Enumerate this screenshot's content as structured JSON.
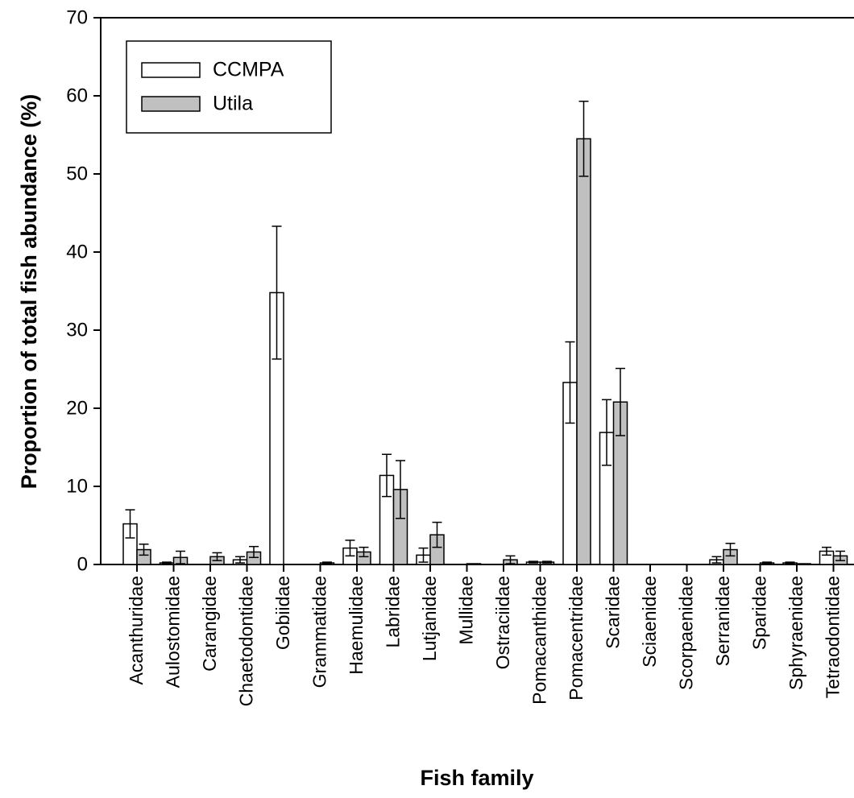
{
  "chart_data": {
    "type": "bar",
    "y_label": "Proportion of total fish abundance (%)",
    "x_label": "Fish family",
    "categories": [
      "Acanthuridae",
      "Aulostomidae",
      "Carangidae",
      "Chaetodontidae",
      "Gobiidae",
      "Grammatidae",
      "Haemulidae",
      "Labridae",
      "Lutjanidae",
      "Mullidae",
      "Ostraciidae",
      "Pomacanthidae",
      "Pomacentridae",
      "Scaridae",
      "Sciaenidae",
      "Scorpaenidae",
      "Serranidae",
      "Sparidae",
      "Sphyraenidae",
      "Tetraodontidae"
    ],
    "series": [
      {
        "name": "CCMPA",
        "color": "#ffffff",
        "values": [
          5.2,
          0.2,
          0,
          0.6,
          34.8,
          0,
          2.1,
          11.4,
          1.2,
          0,
          0,
          0.3,
          23.3,
          16.9,
          0,
          0,
          0.6,
          0,
          0.2,
          1.7
        ],
        "errors": [
          1.8,
          0.1,
          0,
          0.4,
          8.5,
          0,
          1.0,
          2.7,
          0.9,
          0,
          0,
          0.1,
          5.2,
          4.2,
          0,
          0,
          0.4,
          0,
          0.1,
          0.5
        ]
      },
      {
        "name": "Utila",
        "color": "#c0c0c0",
        "values": [
          1.9,
          0.9,
          1.0,
          1.6,
          0,
          0.2,
          1.6,
          9.6,
          3.8,
          0.1,
          0.6,
          0.3,
          54.5,
          20.8,
          0,
          0,
          1.9,
          0.2,
          0.1,
          1.1
        ],
        "errors": [
          0.7,
          0.8,
          0.5,
          0.7,
          0,
          0.1,
          0.6,
          3.7,
          1.6,
          0,
          0.5,
          0.1,
          4.8,
          4.3,
          0,
          0,
          0.8,
          0.1,
          0,
          0.6
        ]
      }
    ],
    "ylim": [
      0,
      70
    ],
    "yticks": [
      0,
      10,
      20,
      30,
      40,
      50,
      60,
      70
    ],
    "legend": "upper left"
  }
}
